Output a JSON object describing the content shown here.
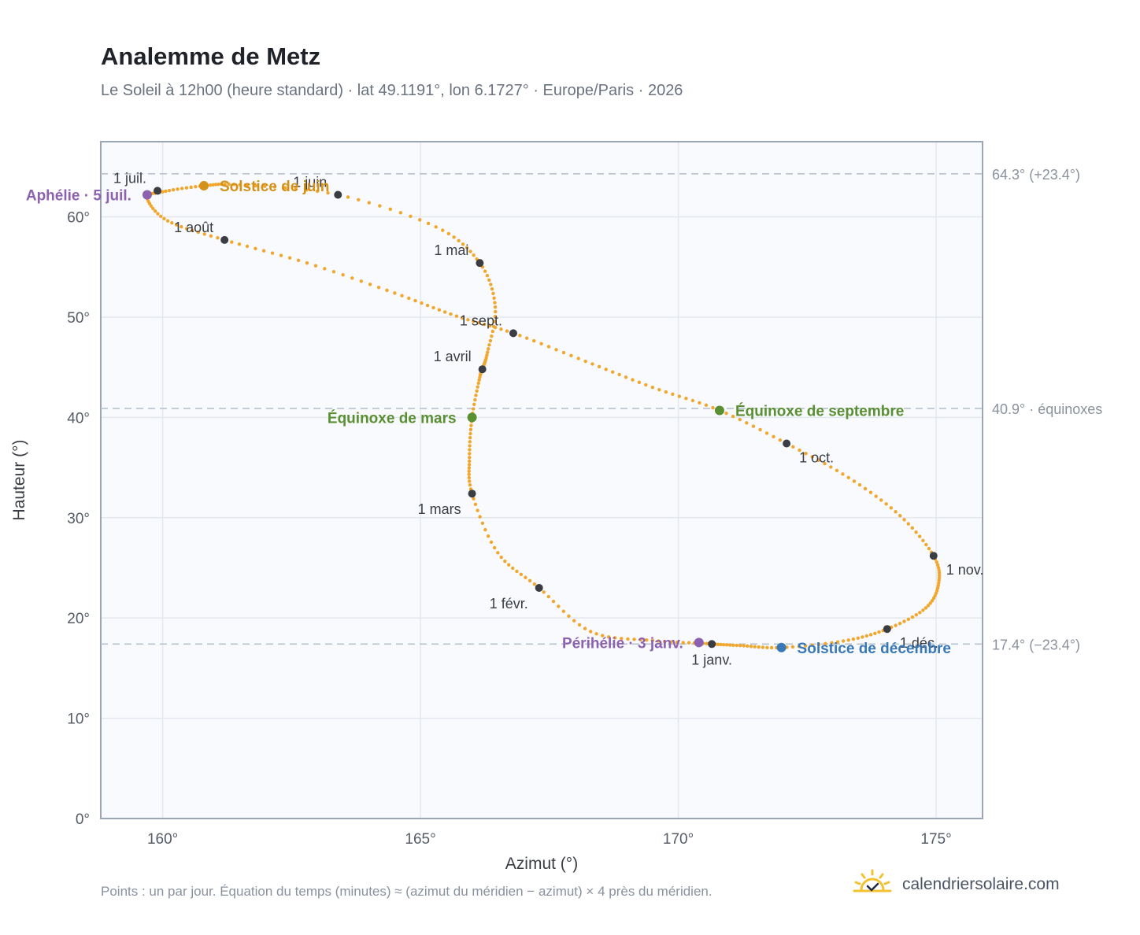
{
  "header": {
    "title": "Analemme de Metz",
    "subtitle": "Le Soleil à 12h00 (heure standard) · lat 49.1191°, lon 6.1727° · Europe/Paris · 2026"
  },
  "footer": {
    "note": "Points : un par jour. Équation du temps (minutes) ≈ (azimut du méridien − azimut) × 4 près du méridien.",
    "brand": "calendriersolaire.com",
    "brand_icon": "sun-check-icon"
  },
  "colors": {
    "curve": "#f2a62b",
    "month_marker": "#3a3d44",
    "solstice_june": "#d4921a",
    "solstice_december": "#3878b8",
    "equinox": "#5a8f32",
    "apsis": "#8c62b0",
    "plot_background": "#f8fafd",
    "grid": "#e4e8ee",
    "reference_line": "#b9c2cf"
  },
  "chart_data": {
    "type": "scatter",
    "xlabel": "Azimut (°)",
    "ylabel": "Hauteur (°)",
    "xlim": [
      158.8,
      175.9
    ],
    "ylim": [
      0,
      67.5
    ],
    "x_ticks": [
      160,
      165,
      170,
      175
    ],
    "x_tick_labels": [
      "160°",
      "165°",
      "170°",
      "175°"
    ],
    "y_ticks": [
      0,
      10,
      20,
      30,
      40,
      50,
      60
    ],
    "y_tick_labels": [
      "0°",
      "10°",
      "20°",
      "30°",
      "40°",
      "50°",
      "60°"
    ],
    "grid": true,
    "reference_lines": [
      {
        "y": 64.3,
        "label": "64.3° (+23.4°)"
      },
      {
        "y": 40.9,
        "label": "40.9° · équinoxes"
      },
      {
        "y": 17.4,
        "label": "17.4° (−23.4°)"
      }
    ],
    "series_description": "Points : un par jour",
    "curve_points": [
      [
        170.55,
        17.45
      ],
      [
        169.5,
        17.75
      ],
      [
        168.3,
        18.65
      ],
      [
        167.3,
        23.0
      ],
      [
        166.5,
        26.5
      ],
      [
        166.0,
        32.4
      ],
      [
        165.95,
        36.0
      ],
      [
        166.0,
        40.0
      ],
      [
        166.15,
        44.0
      ],
      [
        166.2,
        44.8
      ],
      [
        166.3,
        46.5
      ],
      [
        166.45,
        51.0
      ],
      [
        166.15,
        55.4
      ],
      [
        165.3,
        59.0
      ],
      [
        163.4,
        62.2
      ],
      [
        161.5,
        63.2
      ],
      [
        160.8,
        63.1
      ],
      [
        160.0,
        62.5
      ],
      [
        159.7,
        61.9
      ],
      [
        160.1,
        59.6
      ],
      [
        161.2,
        57.7
      ],
      [
        162.8,
        55.4
      ],
      [
        164.5,
        52.4
      ],
      [
        165.7,
        50.1
      ],
      [
        166.8,
        48.4
      ],
      [
        168.2,
        45.6
      ],
      [
        169.5,
        43.0
      ],
      [
        170.8,
        40.7
      ],
      [
        172.1,
        37.4
      ],
      [
        173.3,
        34.0
      ],
      [
        174.3,
        30.2
      ],
      [
        174.95,
        26.2
      ],
      [
        175.05,
        23.5
      ],
      [
        174.8,
        21.0
      ],
      [
        174.05,
        18.9
      ],
      [
        173.2,
        17.7
      ],
      [
        172.0,
        17.05
      ],
      [
        171.2,
        17.25
      ],
      [
        170.65,
        17.4
      ]
    ],
    "month_markers": [
      {
        "label": "1 janv.",
        "x": 170.65,
        "y": 17.4,
        "label_pos": "below"
      },
      {
        "label": "1 févr.",
        "x": 167.3,
        "y": 23.0,
        "label_pos": "below-left"
      },
      {
        "label": "1 mars",
        "x": 166.0,
        "y": 32.4,
        "label_pos": "below-left"
      },
      {
        "label": "1 avril",
        "x": 166.2,
        "y": 44.8,
        "label_pos": "above-left"
      },
      {
        "label": "1 mai",
        "x": 166.15,
        "y": 55.4,
        "label_pos": "above-left"
      },
      {
        "label": "1 juin",
        "x": 163.4,
        "y": 62.2,
        "label_pos": "above-left"
      },
      {
        "label": "1 juil.",
        "x": 159.9,
        "y": 62.6,
        "label_pos": "above-left"
      },
      {
        "label": "1 août",
        "x": 161.2,
        "y": 57.7,
        "label_pos": "above-left"
      },
      {
        "label": "1 sept.",
        "x": 166.8,
        "y": 48.4,
        "label_pos": "above-left"
      },
      {
        "label": "1 oct.",
        "x": 172.1,
        "y": 37.4,
        "label_pos": "below-right"
      },
      {
        "label": "1 nov.",
        "x": 174.95,
        "y": 26.2,
        "label_pos": "below-right"
      },
      {
        "label": "1 déc.",
        "x": 174.05,
        "y": 18.9,
        "label_pos": "below-right"
      }
    ],
    "events": [
      {
        "label": "Solstice de juin",
        "x": 160.8,
        "y": 63.1,
        "color_key": "solstice_june",
        "label_pos": "right"
      },
      {
        "label": "Solstice de décembre",
        "x": 172.0,
        "y": 17.05,
        "color_key": "solstice_december",
        "label_pos": "right"
      },
      {
        "label": "Équinoxe de mars",
        "x": 166.0,
        "y": 40.0,
        "color_key": "equinox",
        "label_pos": "left"
      },
      {
        "label": "Équinoxe de septembre",
        "x": 170.8,
        "y": 40.7,
        "color_key": "equinox",
        "label_pos": "right"
      },
      {
        "label": "Aphélie · 5 juil.",
        "x": 159.7,
        "y": 62.2,
        "color_key": "apsis",
        "label_pos": "left"
      },
      {
        "label": "Périhélie · 3 janv.",
        "x": 170.4,
        "y": 17.55,
        "color_key": "apsis",
        "label_pos": "left"
      }
    ]
  }
}
